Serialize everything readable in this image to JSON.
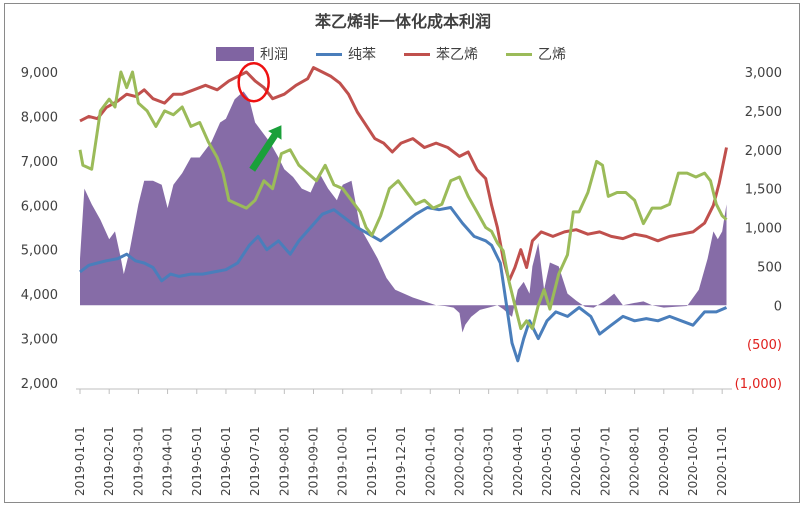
{
  "chart_data": {
    "type": "line",
    "title": "苯乙烯非一体化成本利润",
    "left_axis": {
      "min": 2000,
      "max": 9000,
      "ticks": [
        "9,000",
        "8,000",
        "7,000",
        "6,000",
        "5,000",
        "4,000",
        "3,000",
        "2,000"
      ]
    },
    "right_axis": {
      "min": -1000,
      "max": 3000,
      "ticks": [
        "3,000",
        "2,500",
        "2,000",
        "1,500",
        "1,000",
        "500",
        "0",
        "(500)",
        "(1,000)"
      ],
      "negative_color": "#e0201d"
    },
    "x_ticks": [
      "2019-01-01",
      "2019-02-01",
      "2019-03-01",
      "2019-04-01",
      "2019-05-01",
      "2019-06-01",
      "2019-07-01",
      "2019-08-01",
      "2019-09-01",
      "2019-10-01",
      "2019-11-01",
      "2019-12-01",
      "2020-01-01",
      "2020-02-01",
      "2020-03-01",
      "2020-04-01",
      "2020-05-01",
      "2020-06-01",
      "2020-07-01",
      "2020-08-01",
      "2020-09-01",
      "2020-10-01",
      "2020-11-01"
    ],
    "x_range": [
      0,
      22.2
    ],
    "series": [
      {
        "name": "利润",
        "kind": "area",
        "axis": "right",
        "color": "#8064a2",
        "points": [
          [
            0,
            600
          ],
          [
            0.15,
            1500
          ],
          [
            0.4,
            1300
          ],
          [
            0.7,
            1100
          ],
          [
            1.0,
            850
          ],
          [
            1.2,
            950
          ],
          [
            1.4,
            600
          ],
          [
            1.5,
            400
          ],
          [
            1.7,
            700
          ],
          [
            2.0,
            1300
          ],
          [
            2.2,
            1600
          ],
          [
            2.5,
            1600
          ],
          [
            2.8,
            1550
          ],
          [
            3.0,
            1250
          ],
          [
            3.2,
            1550
          ],
          [
            3.5,
            1700
          ],
          [
            3.8,
            1900
          ],
          [
            4.1,
            1900
          ],
          [
            4.5,
            2100
          ],
          [
            4.8,
            2350
          ],
          [
            5.0,
            2400
          ],
          [
            5.3,
            2650
          ],
          [
            5.6,
            2750
          ],
          [
            5.8,
            2650
          ],
          [
            6.0,
            2350
          ],
          [
            6.3,
            2200
          ],
          [
            6.5,
            2100
          ],
          [
            6.8,
            1900
          ],
          [
            7.0,
            1750
          ],
          [
            7.3,
            1650
          ],
          [
            7.6,
            1500
          ],
          [
            7.9,
            1450
          ],
          [
            8.2,
            1700
          ],
          [
            8.5,
            1500
          ],
          [
            8.8,
            1350
          ],
          [
            9.0,
            1550
          ],
          [
            9.3,
            1600
          ],
          [
            9.6,
            1000
          ],
          [
            9.9,
            800
          ],
          [
            10.2,
            600
          ],
          [
            10.5,
            350
          ],
          [
            10.8,
            200
          ],
          [
            11.1,
            150
          ],
          [
            11.4,
            100
          ],
          [
            11.8,
            50
          ],
          [
            12.2,
            0
          ],
          [
            12.5,
            -10
          ],
          [
            12.8,
            -30
          ],
          [
            13.0,
            -100
          ],
          [
            13.1,
            -350
          ],
          [
            13.2,
            -250
          ],
          [
            13.4,
            -150
          ],
          [
            13.7,
            -60
          ],
          [
            14.0,
            -30
          ],
          [
            14.3,
            0
          ],
          [
            14.5,
            -50
          ],
          [
            14.8,
            -150
          ],
          [
            15.0,
            200
          ],
          [
            15.2,
            300
          ],
          [
            15.4,
            150
          ],
          [
            15.5,
            500
          ],
          [
            15.7,
            800
          ],
          [
            15.9,
            200
          ],
          [
            16.1,
            550
          ],
          [
            16.4,
            500
          ],
          [
            16.7,
            150
          ],
          [
            17.0,
            60
          ],
          [
            17.3,
            -20
          ],
          [
            17.6,
            -30
          ],
          [
            18.0,
            60
          ],
          [
            18.3,
            150
          ],
          [
            18.6,
            0
          ],
          [
            19.0,
            30
          ],
          [
            19.3,
            50
          ],
          [
            19.6,
            0
          ],
          [
            20.0,
            -30
          ],
          [
            20.4,
            -20
          ],
          [
            20.8,
            -10
          ],
          [
            21.2,
            200
          ],
          [
            21.5,
            600
          ],
          [
            21.7,
            950
          ],
          [
            21.85,
            850
          ],
          [
            22.0,
            950
          ],
          [
            22.15,
            1300
          ]
        ]
      },
      {
        "name": "纯苯",
        "kind": "line",
        "axis": "left",
        "color": "#4a7ebb",
        "points": [
          [
            0,
            4500
          ],
          [
            0.3,
            4650
          ],
          [
            0.6,
            4700
          ],
          [
            0.9,
            4750
          ],
          [
            1.3,
            4800
          ],
          [
            1.6,
            4900
          ],
          [
            1.9,
            4750
          ],
          [
            2.2,
            4700
          ],
          [
            2.5,
            4600
          ],
          [
            2.8,
            4300
          ],
          [
            3.1,
            4450
          ],
          [
            3.4,
            4400
          ],
          [
            3.8,
            4450
          ],
          [
            4.2,
            4450
          ],
          [
            4.6,
            4500
          ],
          [
            5.0,
            4550
          ],
          [
            5.4,
            4700
          ],
          [
            5.8,
            5100
          ],
          [
            6.1,
            5300
          ],
          [
            6.4,
            5000
          ],
          [
            6.8,
            5200
          ],
          [
            7.2,
            4900
          ],
          [
            7.5,
            5200
          ],
          [
            7.9,
            5500
          ],
          [
            8.3,
            5800
          ],
          [
            8.7,
            5900
          ],
          [
            9.1,
            5700
          ],
          [
            9.5,
            5500
          ],
          [
            9.9,
            5350
          ],
          [
            10.3,
            5200
          ],
          [
            10.7,
            5400
          ],
          [
            11.1,
            5600
          ],
          [
            11.5,
            5800
          ],
          [
            11.9,
            5950
          ],
          [
            12.3,
            5900
          ],
          [
            12.7,
            5950
          ],
          [
            13.1,
            5600
          ],
          [
            13.5,
            5300
          ],
          [
            13.9,
            5200
          ],
          [
            14.1,
            5100
          ],
          [
            14.4,
            4700
          ],
          [
            14.6,
            3800
          ],
          [
            14.8,
            2900
          ],
          [
            15.0,
            2500
          ],
          [
            15.2,
            3000
          ],
          [
            15.4,
            3400
          ],
          [
            15.7,
            3000
          ],
          [
            16.0,
            3400
          ],
          [
            16.3,
            3600
          ],
          [
            16.7,
            3500
          ],
          [
            17.1,
            3700
          ],
          [
            17.5,
            3500
          ],
          [
            17.8,
            3100
          ],
          [
            18.2,
            3300
          ],
          [
            18.6,
            3500
          ],
          [
            19.0,
            3400
          ],
          [
            19.4,
            3450
          ],
          [
            19.8,
            3400
          ],
          [
            20.2,
            3500
          ],
          [
            20.6,
            3400
          ],
          [
            21.0,
            3300
          ],
          [
            21.4,
            3600
          ],
          [
            21.8,
            3600
          ],
          [
            22.15,
            3700
          ]
        ]
      },
      {
        "name": "苯乙烯",
        "kind": "line",
        "axis": "left",
        "color": "#c0504d",
        "points": [
          [
            0,
            7900
          ],
          [
            0.3,
            8000
          ],
          [
            0.6,
            7950
          ],
          [
            0.9,
            8200
          ],
          [
            1.3,
            8350
          ],
          [
            1.6,
            8500
          ],
          [
            1.9,
            8450
          ],
          [
            2.2,
            8600
          ],
          [
            2.5,
            8400
          ],
          [
            2.9,
            8300
          ],
          [
            3.2,
            8500
          ],
          [
            3.5,
            8500
          ],
          [
            3.9,
            8600
          ],
          [
            4.3,
            8700
          ],
          [
            4.7,
            8600
          ],
          [
            5.1,
            8800
          ],
          [
            5.4,
            8900
          ],
          [
            5.7,
            9000
          ],
          [
            6.0,
            8800
          ],
          [
            6.3,
            8650
          ],
          [
            6.6,
            8400
          ],
          [
            7.0,
            8500
          ],
          [
            7.4,
            8700
          ],
          [
            7.8,
            8850
          ],
          [
            8.0,
            9100
          ],
          [
            8.3,
            9000
          ],
          [
            8.6,
            8900
          ],
          [
            8.9,
            8750
          ],
          [
            9.2,
            8500
          ],
          [
            9.5,
            8100
          ],
          [
            9.8,
            7800
          ],
          [
            10.1,
            7500
          ],
          [
            10.4,
            7400
          ],
          [
            10.7,
            7200
          ],
          [
            11.0,
            7400
          ],
          [
            11.4,
            7500
          ],
          [
            11.8,
            7300
          ],
          [
            12.2,
            7400
          ],
          [
            12.6,
            7300
          ],
          [
            13.0,
            7100
          ],
          [
            13.3,
            7200
          ],
          [
            13.6,
            6800
          ],
          [
            13.9,
            6600
          ],
          [
            14.1,
            6000
          ],
          [
            14.3,
            5500
          ],
          [
            14.5,
            4800
          ],
          [
            14.7,
            4300
          ],
          [
            14.9,
            4600
          ],
          [
            15.1,
            5000
          ],
          [
            15.3,
            4600
          ],
          [
            15.5,
            5200
          ],
          [
            15.8,
            5400
          ],
          [
            16.2,
            5300
          ],
          [
            16.6,
            5400
          ],
          [
            17.0,
            5450
          ],
          [
            17.4,
            5350
          ],
          [
            17.8,
            5400
          ],
          [
            18.2,
            5300
          ],
          [
            18.6,
            5250
          ],
          [
            19.0,
            5350
          ],
          [
            19.4,
            5300
          ],
          [
            19.8,
            5200
          ],
          [
            20.2,
            5300
          ],
          [
            20.6,
            5350
          ],
          [
            21.0,
            5400
          ],
          [
            21.4,
            5600
          ],
          [
            21.7,
            6000
          ],
          [
            21.9,
            6500
          ],
          [
            22.15,
            7300
          ]
        ]
      },
      {
        "name": "乙烯",
        "kind": "line",
        "axis": "right",
        "color": "#9bbb59",
        "points": [
          [
            0,
            2000
          ],
          [
            0.1,
            1800
          ],
          [
            0.4,
            1750
          ],
          [
            0.5,
            2000
          ],
          [
            0.7,
            2500
          ],
          [
            1.0,
            2650
          ],
          [
            1.2,
            2550
          ],
          [
            1.4,
            3000
          ],
          [
            1.6,
            2800
          ],
          [
            1.8,
            3000
          ],
          [
            2.0,
            2600
          ],
          [
            2.3,
            2500
          ],
          [
            2.6,
            2300
          ],
          [
            2.9,
            2500
          ],
          [
            3.2,
            2450
          ],
          [
            3.5,
            2550
          ],
          [
            3.8,
            2300
          ],
          [
            4.1,
            2350
          ],
          [
            4.4,
            2100
          ],
          [
            4.7,
            1900
          ],
          [
            4.9,
            1700
          ],
          [
            5.1,
            1350
          ],
          [
            5.4,
            1300
          ],
          [
            5.7,
            1250
          ],
          [
            6.0,
            1350
          ],
          [
            6.3,
            1600
          ],
          [
            6.6,
            1500
          ],
          [
            6.9,
            1950
          ],
          [
            7.2,
            2000
          ],
          [
            7.5,
            1800
          ],
          [
            7.8,
            1700
          ],
          [
            8.1,
            1600
          ],
          [
            8.4,
            1800
          ],
          [
            8.7,
            1550
          ],
          [
            9.0,
            1500
          ],
          [
            9.3,
            1350
          ],
          [
            9.6,
            1200
          ],
          [
            9.8,
            1000
          ],
          [
            10.0,
            900
          ],
          [
            10.3,
            1150
          ],
          [
            10.6,
            1500
          ],
          [
            10.9,
            1600
          ],
          [
            11.2,
            1450
          ],
          [
            11.5,
            1300
          ],
          [
            11.8,
            1350
          ],
          [
            12.1,
            1250
          ],
          [
            12.4,
            1300
          ],
          [
            12.7,
            1600
          ],
          [
            13.0,
            1650
          ],
          [
            13.3,
            1400
          ],
          [
            13.6,
            1200
          ],
          [
            13.9,
            1000
          ],
          [
            14.1,
            950
          ],
          [
            14.3,
            800
          ],
          [
            14.5,
            700
          ],
          [
            14.7,
            300
          ],
          [
            14.9,
            0
          ],
          [
            15.1,
            -300
          ],
          [
            15.3,
            -200
          ],
          [
            15.5,
            -300
          ],
          [
            15.7,
            0
          ],
          [
            15.9,
            200
          ],
          [
            16.1,
            -50
          ],
          [
            16.4,
            400
          ],
          [
            16.7,
            650
          ],
          [
            16.9,
            1200
          ],
          [
            17.1,
            1200
          ],
          [
            17.4,
            1450
          ],
          [
            17.7,
            1850
          ],
          [
            17.9,
            1800
          ],
          [
            18.1,
            1400
          ],
          [
            18.4,
            1450
          ],
          [
            18.7,
            1450
          ],
          [
            19.0,
            1350
          ],
          [
            19.3,
            1050
          ],
          [
            19.6,
            1250
          ],
          [
            19.9,
            1250
          ],
          [
            20.2,
            1300
          ],
          [
            20.5,
            1700
          ],
          [
            20.8,
            1700
          ],
          [
            21.1,
            1650
          ],
          [
            21.4,
            1700
          ],
          [
            21.6,
            1600
          ],
          [
            21.8,
            1300
          ],
          [
            22.0,
            1150
          ],
          [
            22.15,
            1100
          ]
        ]
      }
    ],
    "annotations": [
      {
        "kind": "circle",
        "color": "#ee1111",
        "x": 5.95,
        "y_left": 8770
      },
      {
        "kind": "arrow",
        "color": "#1aa03a",
        "from": [
          5.9,
          6800
        ],
        "to": [
          6.9,
          7800
        ]
      }
    ]
  }
}
